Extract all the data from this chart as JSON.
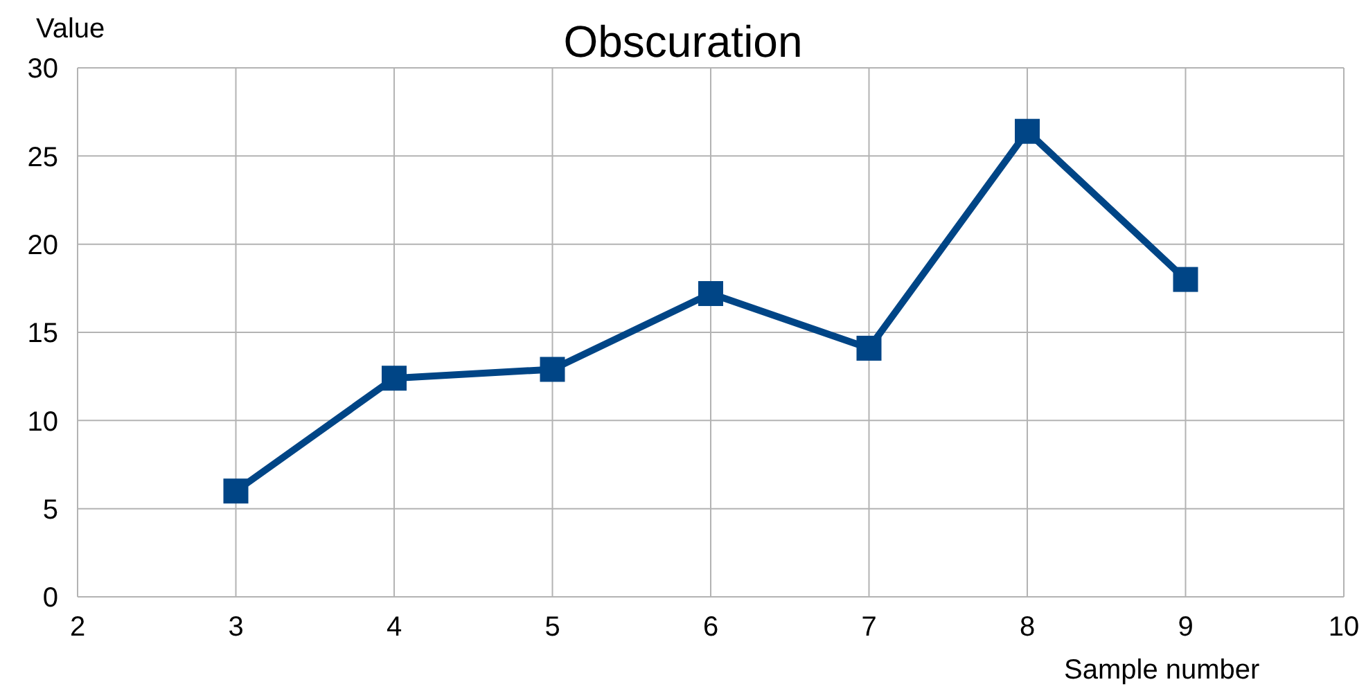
{
  "chart_data": {
    "type": "line",
    "title": "Obscuration",
    "xlabel": "Sample number",
    "ylabel": "Value",
    "x": [
      3,
      4,
      5,
      6,
      7,
      8,
      9
    ],
    "series": [
      {
        "color": "#004586",
        "values": [
          6,
          12.4,
          12.9,
          17.2,
          14.1,
          26.4,
          18
        ]
      }
    ],
    "xlim": [
      2,
      10
    ],
    "xticks": [
      2,
      3,
      4,
      5,
      6,
      7,
      8,
      9,
      10
    ],
    "ylim": [
      0,
      30
    ],
    "yticks": [
      0,
      5,
      10,
      15,
      20,
      25,
      30
    ],
    "grid": true,
    "legend": false,
    "marker": "square",
    "line_style": "solid"
  }
}
